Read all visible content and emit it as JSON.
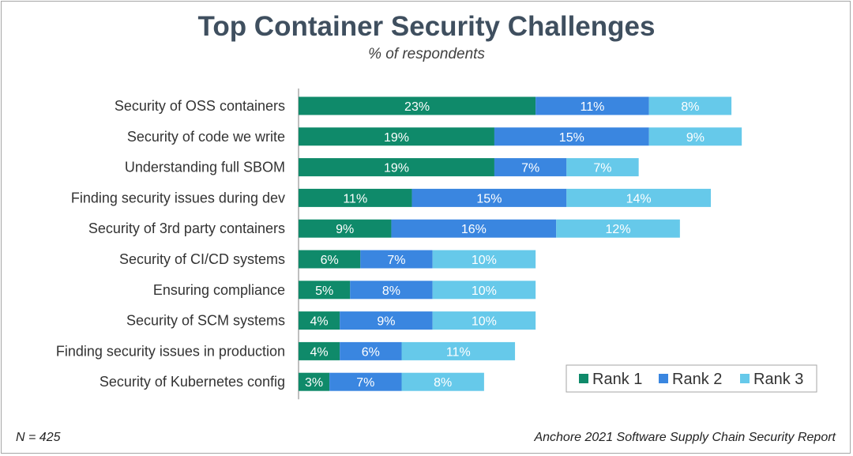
{
  "header": {
    "title": "Top Container Security Challenges",
    "subtitle": "% of respondents"
  },
  "footer": {
    "sample_size": "N = 425",
    "source": "Anchore 2021 Software Supply Chain Security Report"
  },
  "colors": {
    "rank1": "#0f8a6a",
    "rank2": "#3a86e0",
    "rank3": "#66c9ea",
    "label_text": "#333333",
    "bar_text": "#ffffff",
    "axis": "#7f7f7f"
  },
  "chart_data": {
    "type": "bar",
    "orientation": "horizontal",
    "stacked": true,
    "title": "Top Container Security Challenges",
    "subtitle": "% of respondents",
    "xlabel": "",
    "ylabel": "",
    "xlim": [
      0,
      46
    ],
    "grid": false,
    "legend_position": "bottom-right",
    "value_suffix": "%",
    "categories": [
      "Security of OSS containers",
      "Security of code we write",
      "Understanding full SBOM",
      "Finding security issues during dev",
      "Security of 3rd party containers",
      "Security of CI/CD systems",
      "Ensuring compliance",
      "Security of SCM systems",
      "Finding security issues in production",
      "Security of Kubernetes config"
    ],
    "series": [
      {
        "name": "Rank 1",
        "color": "#0f8a6a",
        "values": [
          23,
          19,
          19,
          11,
          9,
          6,
          5,
          4,
          4,
          3
        ]
      },
      {
        "name": "Rank 2",
        "color": "#3a86e0",
        "values": [
          11,
          15,
          7,
          15,
          16,
          7,
          8,
          9,
          6,
          7
        ]
      },
      {
        "name": "Rank 3",
        "color": "#66c9ea",
        "values": [
          8,
          9,
          7,
          14,
          12,
          10,
          10,
          10,
          11,
          8
        ]
      }
    ]
  }
}
